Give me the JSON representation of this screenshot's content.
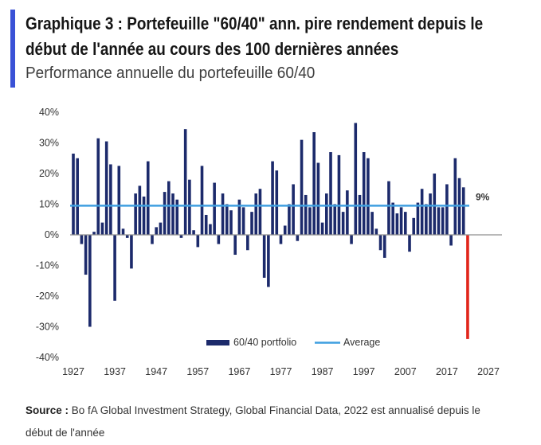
{
  "colors": {
    "accent": "#3a52d6",
    "bar": "#1c2a6b",
    "highlight_bar": "#e1251b",
    "average": "#3f9fe0",
    "axis": "#8f8f8f",
    "text": "#333333"
  },
  "chart_data": {
    "type": "bar",
    "title_lines": [
      "Graphique 3 : Portefeuille \"60/40\" ann. pire rendement depuis le",
      "début de l'année au cours des 100 dernières années"
    ],
    "subtitle": "Performance annuelle du portefeuille 60/40",
    "categories": [
      1927,
      1928,
      1929,
      1930,
      1931,
      1932,
      1933,
      1934,
      1935,
      1936,
      1937,
      1938,
      1939,
      1940,
      1941,
      1942,
      1943,
      1944,
      1945,
      1946,
      1947,
      1948,
      1949,
      1950,
      1951,
      1952,
      1953,
      1954,
      1955,
      1956,
      1957,
      1958,
      1959,
      1960,
      1961,
      1962,
      1963,
      1964,
      1965,
      1966,
      1967,
      1968,
      1969,
      1970,
      1971,
      1972,
      1973,
      1974,
      1975,
      1976,
      1977,
      1978,
      1979,
      1980,
      1981,
      1982,
      1983,
      1984,
      1985,
      1986,
      1987,
      1988,
      1989,
      1990,
      1991,
      1992,
      1993,
      1994,
      1995,
      1996,
      1997,
      1998,
      1999,
      2000,
      2001,
      2002,
      2003,
      2004,
      2005,
      2006,
      2007,
      2008,
      2009,
      2010,
      2011,
      2012,
      2013,
      2014,
      2015,
      2016,
      2017,
      2018,
      2019,
      2020,
      2021,
      2022
    ],
    "series": [
      {
        "name": "60/40 portfolio",
        "values": [
          26.5,
          25,
          -3,
          -13,
          -30,
          1,
          31.5,
          4,
          30.5,
          23,
          -21.5,
          22.5,
          2,
          -1,
          -11,
          13.5,
          16,
          12.5,
          24,
          -3,
          2.5,
          4,
          14,
          17.5,
          13.5,
          11.5,
          -1,
          34.5,
          18,
          1.5,
          -4,
          22.5,
          6.5,
          3.5,
          17,
          -3,
          13.5,
          10,
          8,
          -6.5,
          11.5,
          9,
          -5,
          7.5,
          13.5,
          15,
          -14,
          -17,
          24,
          21,
          -3,
          3,
          10,
          16.5,
          -2,
          31,
          13,
          9,
          33.5,
          23.5,
          4,
          13.5,
          27,
          10,
          26,
          7.5,
          14.5,
          -3,
          36.5,
          13,
          27,
          25,
          7.5,
          2,
          -5,
          -7.5,
          17.5,
          10.5,
          7,
          9,
          7.5,
          -5.5,
          5.5,
          10.5,
          15,
          10,
          13.5,
          20,
          9,
          9,
          16.5,
          -3.5,
          25,
          18.5,
          15.5,
          -34
        ]
      }
    ],
    "highlight_category": 2022,
    "average": {
      "name": "Average",
      "value": 9.5,
      "label": "9%"
    },
    "y_axis": {
      "min": -40,
      "max": 40,
      "ticks": [
        40,
        30,
        20,
        10,
        0,
        -10,
        -20,
        -30,
        -40
      ],
      "tick_labels": [
        "40%",
        "30%",
        "20%",
        "10%",
        "0%",
        "-10%",
        "-20%",
        "-30%",
        "-40%"
      ]
    },
    "x_axis": {
      "min": 1927,
      "max": 2027,
      "ticks": [
        1927,
        1937,
        1947,
        1957,
        1967,
        1977,
        1987,
        1997,
        2007,
        2017,
        2027
      ],
      "tick_labels": [
        "1927",
        "1937",
        "1947",
        "1957",
        "1967",
        "1977",
        "1987",
        "1997",
        "2007",
        "2017",
        "2027"
      ]
    },
    "legend": {
      "position": "bottom-center"
    },
    "grid": false
  },
  "footer": {
    "source_label": "Source :",
    "source_line1": "Bo fA Global Investment Strategy, Global Financial Data, 2022 est annualisé depuis le",
    "source_line2": "début de l'année"
  }
}
